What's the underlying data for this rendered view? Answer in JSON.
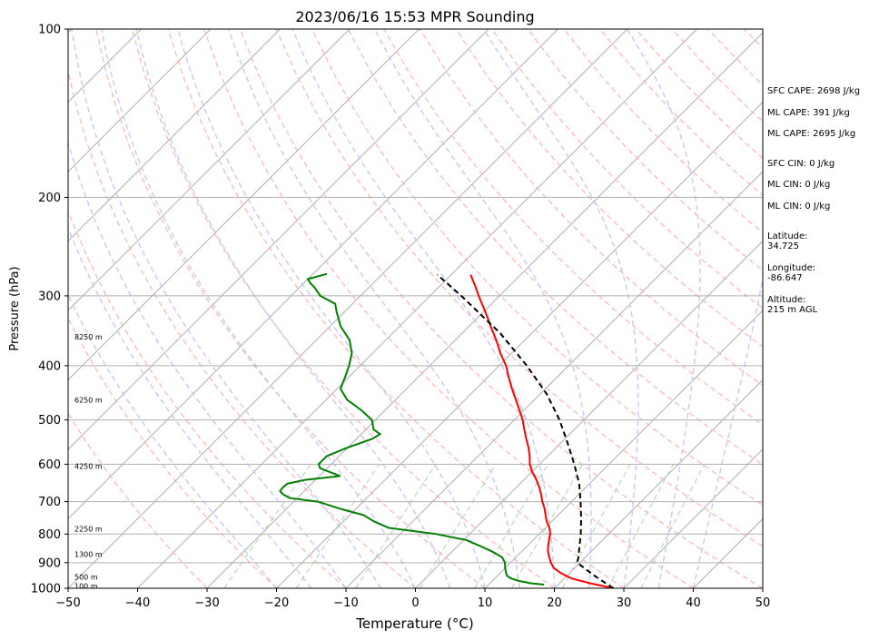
{
  "chart_data": {
    "type": "line",
    "title": "2023/06/16 15:53 MPR Sounding",
    "xlabel": "Temperature (°C)",
    "ylabel": "Pressure (hPa)",
    "xlim": [
      -50,
      50
    ],
    "ylim": [
      1000,
      100
    ],
    "y_scale": "log",
    "skew": "skew-T",
    "x_ticks": [
      "−50",
      "−40",
      "−30",
      "−20",
      "−10",
      "0",
      "10",
      "20",
      "30",
      "40",
      "50"
    ],
    "y_ticks": [
      {
        "p": 100,
        "label": "100"
      },
      {
        "p": 200,
        "label": "200"
      },
      {
        "p": 300,
        "label": "300"
      },
      {
        "p": 400,
        "label": "400"
      },
      {
        "p": 500,
        "label": "500"
      },
      {
        "p": 600,
        "label": "600"
      },
      {
        "p": 700,
        "label": "700"
      },
      {
        "p": 800,
        "label": "800"
      },
      {
        "p": 900,
        "label": "900"
      },
      {
        "p": 1000,
        "label": "1000"
      }
    ],
    "grid": true,
    "series": [
      {
        "role": "temperature",
        "color": "#ff0000",
        "points": [
          [
            1000,
            28.5
          ],
          [
            980,
            24.5
          ],
          [
            960,
            21.0
          ],
          [
            940,
            18.8
          ],
          [
            920,
            17.0
          ],
          [
            900,
            15.8
          ],
          [
            880,
            14.8
          ],
          [
            860,
            13.8
          ],
          [
            840,
            13.0
          ],
          [
            820,
            12.3
          ],
          [
            800,
            11.6
          ],
          [
            780,
            10.6
          ],
          [
            760,
            9.3
          ],
          [
            740,
            8.2
          ],
          [
            720,
            7.1
          ],
          [
            700,
            5.8
          ],
          [
            680,
            4.6
          ],
          [
            660,
            3.3
          ],
          [
            640,
            1.8
          ],
          [
            620,
            0.1
          ],
          [
            600,
            -1.4
          ],
          [
            580,
            -2.6
          ],
          [
            560,
            -4.0
          ],
          [
            540,
            -5.6
          ],
          [
            520,
            -7.2
          ],
          [
            500,
            -8.8
          ],
          [
            480,
            -10.7
          ],
          [
            460,
            -12.7
          ],
          [
            440,
            -14.8
          ],
          [
            420,
            -16.9
          ],
          [
            400,
            -19.0
          ],
          [
            380,
            -21.6
          ],
          [
            360,
            -24.1
          ],
          [
            340,
            -26.9
          ],
          [
            320,
            -29.8
          ],
          [
            300,
            -33.0
          ],
          [
            290,
            -34.6
          ],
          [
            275,
            -37.2
          ]
        ]
      },
      {
        "role": "dewpoint",
        "color": "#008000",
        "points": [
          [
            985,
            18.0
          ],
          [
            980,
            16.0
          ],
          [
            970,
            13.8
          ],
          [
            960,
            12.3
          ],
          [
            950,
            11.4
          ],
          [
            940,
            10.9
          ],
          [
            920,
            10.0
          ],
          [
            900,
            9.2
          ],
          [
            880,
            8.0
          ],
          [
            860,
            5.8
          ],
          [
            840,
            3.2
          ],
          [
            820,
            0.4
          ],
          [
            800,
            -4.8
          ],
          [
            780,
            -12.5
          ],
          [
            760,
            -15.5
          ],
          [
            740,
            -18.0
          ],
          [
            720,
            -22.5
          ],
          [
            700,
            -26.5
          ],
          [
            690,
            -31.0
          ],
          [
            680,
            -32.5
          ],
          [
            670,
            -33.5
          ],
          [
            660,
            -33.6
          ],
          [
            650,
            -33.5
          ],
          [
            640,
            -31.5
          ],
          [
            630,
            -27.0
          ],
          [
            620,
            -29.0
          ],
          [
            610,
            -31.0
          ],
          [
            600,
            -31.8
          ],
          [
            580,
            -31.8
          ],
          [
            560,
            -30.0
          ],
          [
            540,
            -27.7
          ],
          [
            530,
            -27.3
          ],
          [
            520,
            -28.9
          ],
          [
            500,
            -30.5
          ],
          [
            480,
            -33.5
          ],
          [
            460,
            -37.0
          ],
          [
            440,
            -39.5
          ],
          [
            420,
            -40.5
          ],
          [
            400,
            -41.6
          ],
          [
            380,
            -43.0
          ],
          [
            360,
            -45.2
          ],
          [
            340,
            -48.5
          ],
          [
            320,
            -51.2
          ],
          [
            310,
            -52.5
          ],
          [
            300,
            -55.8
          ],
          [
            290,
            -57.8
          ],
          [
            285,
            -59.0
          ],
          [
            280,
            -60.0
          ],
          [
            274,
            -58.0
          ]
        ]
      },
      {
        "role": "parcel",
        "color": "#000000",
        "style": "dashed",
        "points": [
          [
            1000,
            28.5
          ],
          [
            950,
            24.0
          ],
          [
            900,
            19.6
          ],
          [
            880,
            19.0
          ],
          [
            850,
            17.9
          ],
          [
            800,
            16.0
          ],
          [
            750,
            13.8
          ],
          [
            700,
            11.3
          ],
          [
            650,
            8.5
          ],
          [
            600,
            5.0
          ],
          [
            550,
            1.0
          ],
          [
            500,
            -3.5
          ],
          [
            450,
            -9.0
          ],
          [
            400,
            -16.0
          ],
          [
            350,
            -24.5
          ],
          [
            300,
            -35.5
          ],
          [
            275,
            -42.0
          ]
        ]
      }
    ],
    "height_labels": [
      {
        "p": 355,
        "label": "8250 m"
      },
      {
        "p": 460,
        "label": "6250 m"
      },
      {
        "p": 605,
        "label": "4250 m"
      },
      {
        "p": 783,
        "label": "2250 m"
      },
      {
        "p": 870,
        "label": "1300 m"
      },
      {
        "p": 955,
        "label": "500 m"
      },
      {
        "p": 990,
        "label": "100 m"
      }
    ]
  },
  "stats": {
    "sfc_cape": "SFC CAPE: 2698 J/kg",
    "ml_cape": "ML CAPE: 391 J/kg",
    "ml_cape_2": "ML CAPE: 2695 J/kg",
    "sfc_cin": "SFC CIN: 0 J/kg",
    "ml_cin": "ML CIN: 0 J/kg",
    "ml_cin_2": "ML CIN: 0 J/kg",
    "latitude_label": "Latitude:",
    "latitude_value": "34.725",
    "longitude_label": "Longitude:",
    "longitude_value": "-86.647",
    "altitude_label": "Altitude:",
    "altitude_value": "215 m AGL"
  }
}
